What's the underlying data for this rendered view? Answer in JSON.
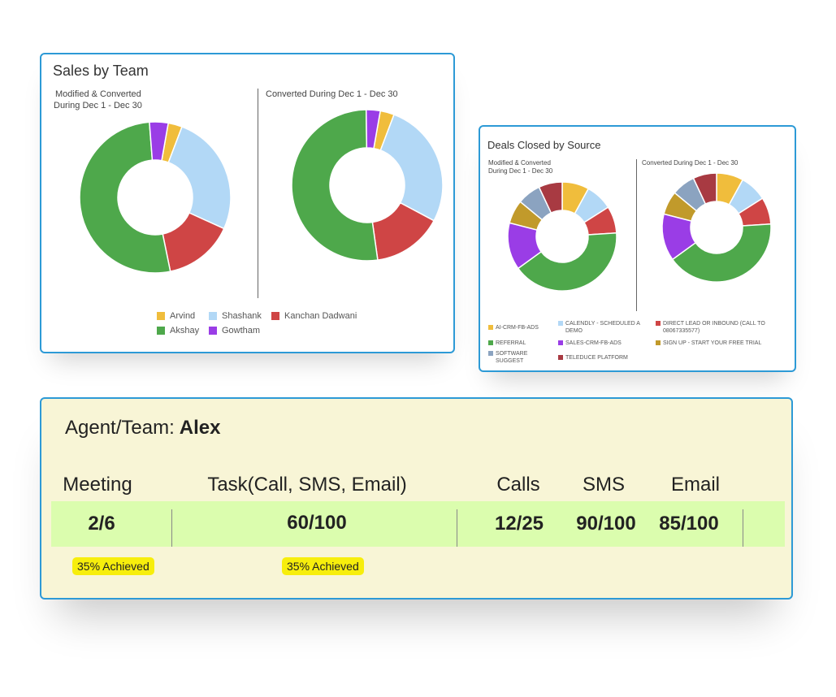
{
  "sales_by_team": {
    "title": "Sales by Team",
    "left_subtitle_line1": "Modified & Converted",
    "left_subtitle_line2": "During Dec 1 - Dec 30",
    "right_subtitle": "Converted During Dec 1 - Dec 30",
    "legend": [
      {
        "label": "Arvind",
        "color": "#f0bd3c"
      },
      {
        "label": "Shashank",
        "color": "#b2d8f6"
      },
      {
        "label": "Kanchan Dadwani",
        "color": "#cf4545"
      },
      {
        "label": "Akshay",
        "color": "#4ea84b"
      },
      {
        "label": "Gowtham",
        "color": "#9a3de6"
      }
    ]
  },
  "deals_by_source": {
    "title": "Deals Closed by Source",
    "left_subtitle_line1": "Modified & Converted",
    "left_subtitle_line2": "During Dec 1 - Dec 30",
    "right_subtitle": "Converted During Dec 1 - Dec 30",
    "legend": [
      {
        "label": "AI-CRM-FB-ADS",
        "color": "#f0bd3c"
      },
      {
        "label": "CALENDLY - SCHEDULED A DEMO",
        "color": "#b2d8f6"
      },
      {
        "label": "DIRECT LEAD OR INBOUND (CALL TO 08067335577)",
        "color": "#cf4545"
      },
      {
        "label": "REFERRAL",
        "color": "#4ea84b"
      },
      {
        "label": "SALES-CRM-FB-ADS",
        "color": "#9a3de6"
      },
      {
        "label": "SIGN UP - START YOUR FREE TRIAL",
        "color": "#c19a2b"
      },
      {
        "label": "SOFTWARE SUGGEST",
        "color": "#8ba3c0"
      },
      {
        "label": "TELEDUCE PLATFORM",
        "color": "#a83a42"
      }
    ]
  },
  "chart_data": [
    {
      "type": "pie",
      "donut": true,
      "title": "Sales by Team",
      "subtitle": "Modified & Converted During Dec 1 - Dec 30",
      "categories": [
        "Arvind",
        "Shashank",
        "Kanchan Dadwani",
        "Akshay",
        "Gowtham"
      ],
      "values": [
        3,
        26,
        15,
        52,
        4
      ],
      "colors": [
        "#f0bd3c",
        "#b2d8f6",
        "#cf4545",
        "#4ea84b",
        "#9a3de6"
      ]
    },
    {
      "type": "pie",
      "donut": true,
      "title": "Sales by Team",
      "subtitle": "Converted During Dec 1 - Dec 30",
      "categories": [
        "Arvind",
        "Shashank",
        "Kanchan Dadwani",
        "Akshay",
        "Gowtham"
      ],
      "values": [
        3,
        27,
        15,
        52,
        3
      ],
      "colors": [
        "#f0bd3c",
        "#b2d8f6",
        "#cf4545",
        "#4ea84b",
        "#9a3de6"
      ]
    },
    {
      "type": "pie",
      "donut": true,
      "title": "Deals Closed by Source",
      "subtitle": "Modified & Converted During Dec 1 - Dec 30",
      "categories": [
        "AI-CRM-FB-ADS",
        "CALENDLY - SCHEDULED A DEMO",
        "DIRECT LEAD OR INBOUND (CALL TO 08067335577)",
        "REFERRAL",
        "SALES-CRM-FB-ADS",
        "SIGN UP - START YOUR FREE TRIAL",
        "SOFTWARE SUGGEST",
        "TELEDUCE PLATFORM"
      ],
      "values": [
        8,
        8,
        8,
        41,
        14,
        7,
        7,
        7
      ],
      "colors": [
        "#f0bd3c",
        "#b2d8f6",
        "#cf4545",
        "#4ea84b",
        "#9a3de6",
        "#c19a2b",
        "#8ba3c0",
        "#a83a42"
      ]
    },
    {
      "type": "pie",
      "donut": true,
      "title": "Deals Closed by Source",
      "subtitle": "Converted During Dec 1 - Dec 30",
      "categories": [
        "AI-CRM-FB-ADS",
        "CALENDLY - SCHEDULED A DEMO",
        "DIRECT LEAD OR INBOUND (CALL TO 08067335577)",
        "REFERRAL",
        "SALES-CRM-FB-ADS",
        "SIGN UP - START YOUR FREE TRIAL",
        "SOFTWARE SUGGEST",
        "TELEDUCE PLATFORM"
      ],
      "values": [
        8,
        8,
        8,
        41,
        14,
        7,
        7,
        7
      ],
      "colors": [
        "#f0bd3c",
        "#b2d8f6",
        "#cf4545",
        "#4ea84b",
        "#9a3de6",
        "#c19a2b",
        "#8ba3c0",
        "#a83a42"
      ]
    }
  ],
  "agent": {
    "label": "Agent/Team:",
    "name": "Alex",
    "columns": [
      {
        "header": "Meeting",
        "value": "2/6",
        "badge": "35% Achieved"
      },
      {
        "header": "Task(Call, SMS, Email)",
        "value": "60/100",
        "badge": "35% Achieved"
      },
      {
        "header": "Calls",
        "value": "12/25"
      },
      {
        "header": "SMS",
        "value": "90/100"
      },
      {
        "header": "Email",
        "value": "85/100"
      }
    ]
  }
}
